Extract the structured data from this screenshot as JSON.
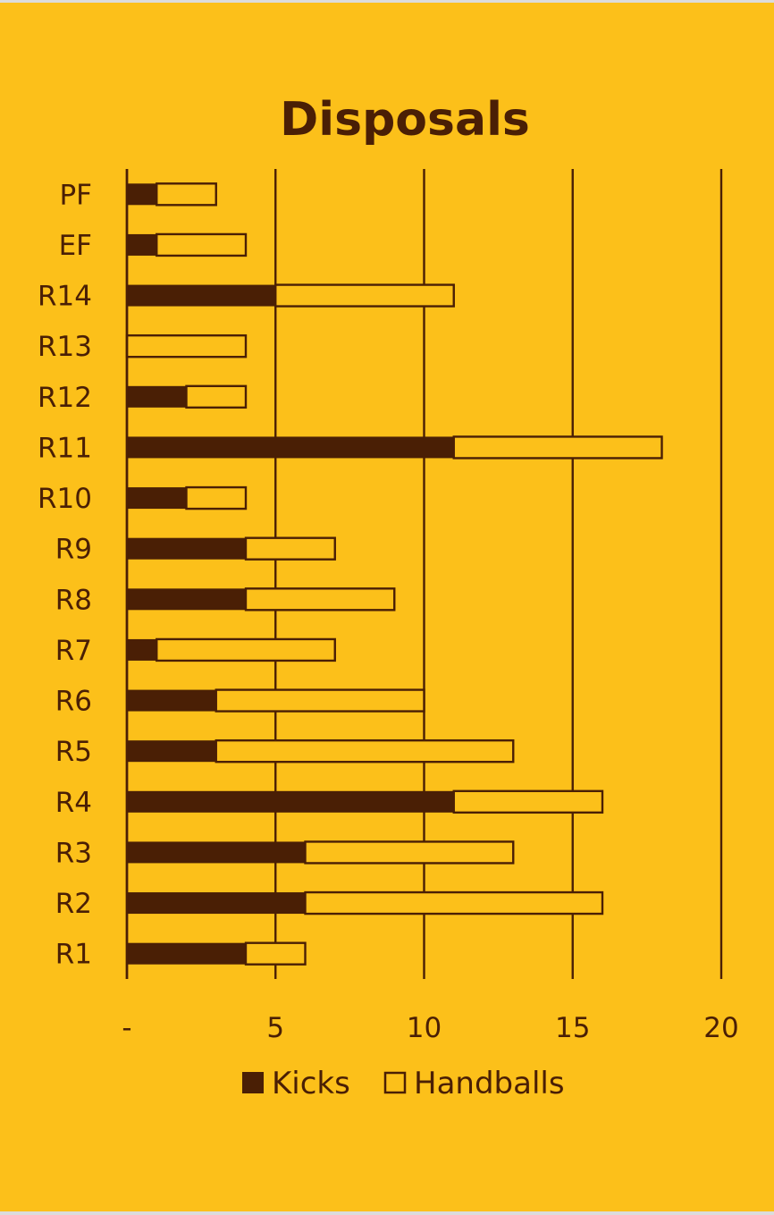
{
  "colors": {
    "background": "#FCC01A",
    "kicks": "#4A1F05",
    "handballs": "#FCC01A",
    "outline": "#4A1F05",
    "text": "#4A1F05"
  },
  "chart_data": {
    "type": "bar",
    "orientation": "horizontal",
    "stacked": true,
    "title": "Disposals",
    "categories": [
      "PF",
      "EF",
      "R14",
      "R13",
      "R12",
      "R11",
      "R10",
      "R9",
      "R8",
      "R7",
      "R6",
      "R5",
      "R4",
      "R3",
      "R2",
      "R1"
    ],
    "series": [
      {
        "name": "Kicks",
        "values": [
          1,
          1,
          5,
          0,
          2,
          11,
          2,
          4,
          4,
          1,
          3,
          3,
          11,
          6,
          6,
          4
        ]
      },
      {
        "name": "Handballs",
        "values": [
          2,
          3,
          6,
          4,
          2,
          7,
          2,
          3,
          5,
          6,
          7,
          10,
          5,
          7,
          10,
          2
        ]
      }
    ],
    "xlim": [
      0,
      20
    ],
    "xticks": [
      0,
      5,
      10,
      15,
      20
    ],
    "xtick_labels": [
      "-",
      "5",
      "10",
      "15",
      "20"
    ],
    "grid": "vertical",
    "legend": "bottom-center",
    "xlabel": "",
    "ylabel": ""
  }
}
